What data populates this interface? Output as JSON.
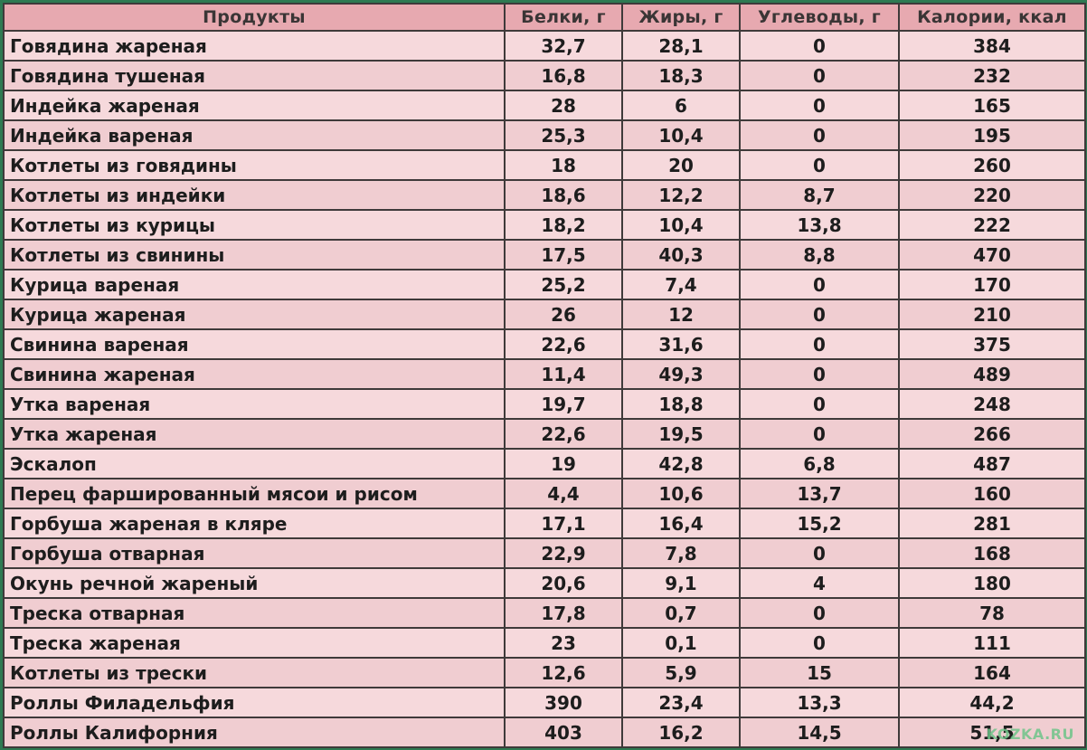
{
  "table": {
    "headers": [
      "Продукты",
      "Белки, г",
      "Жиры, г",
      "Углеводы, г",
      "Калории, ккал"
    ],
    "rows": [
      [
        "Говядина жареная",
        "32,7",
        "28,1",
        "0",
        "384"
      ],
      [
        "Говядина тушеная",
        "16,8",
        "18,3",
        "0",
        "232"
      ],
      [
        "Индейка жареная",
        "28",
        "6",
        "0",
        "165"
      ],
      [
        "Индейка вареная",
        "25,3",
        "10,4",
        "0",
        "195"
      ],
      [
        "Котлеты из говядины",
        "18",
        "20",
        "0",
        "260"
      ],
      [
        "Котлеты из индейки",
        "18,6",
        "12,2",
        "8,7",
        "220"
      ],
      [
        "Котлеты из курицы",
        "18,2",
        "10,4",
        "13,8",
        "222"
      ],
      [
        "Котлеты из свинины",
        "17,5",
        "40,3",
        "8,8",
        "470"
      ],
      [
        "Курица вареная",
        "25,2",
        "7,4",
        "0",
        "170"
      ],
      [
        "Курица жареная",
        "26",
        "12",
        "0",
        "210"
      ],
      [
        "Свинина вареная",
        "22,6",
        "31,6",
        "0",
        "375"
      ],
      [
        "Свинина жареная",
        "11,4",
        "49,3",
        "0",
        "489"
      ],
      [
        "Утка вареная",
        "19,7",
        "18,8",
        "0",
        "248"
      ],
      [
        "Утка жареная",
        "22,6",
        "19,5",
        "0",
        "266"
      ],
      [
        "Эскалоп",
        "19",
        "42,8",
        "6,8",
        "487"
      ],
      [
        "Перец фаршированный мясои и рисом",
        "4,4",
        "10,6",
        "13,7",
        "160"
      ],
      [
        "Горбуша жареная в кляре",
        "17,1",
        "16,4",
        "15,2",
        "281"
      ],
      [
        "Горбуша отварная",
        "22,9",
        "7,8",
        "0",
        "168"
      ],
      [
        "Окунь речной жареный",
        "20,6",
        "9,1",
        "4",
        "180"
      ],
      [
        "Треска отварная",
        "17,8",
        "0,7",
        "0",
        "78"
      ],
      [
        "Треска жареная",
        "23",
        "0,1",
        "0",
        "111"
      ],
      [
        "Котлеты из трески",
        "12,6",
        "5,9",
        "15",
        "164"
      ],
      [
        "Роллы Филадельфия",
        "390",
        "23,4",
        "13,3",
        "44,2"
      ],
      [
        "Роллы Калифорния",
        "403",
        "16,2",
        "14,5",
        "51,5"
      ]
    ]
  },
  "watermark": "KOZKA.RU",
  "colors": {
    "header_bg": "#e7a9b0",
    "row_bg": "#f6d9dc",
    "frame": "#2e7a52",
    "grid": "#3f3a3a"
  }
}
